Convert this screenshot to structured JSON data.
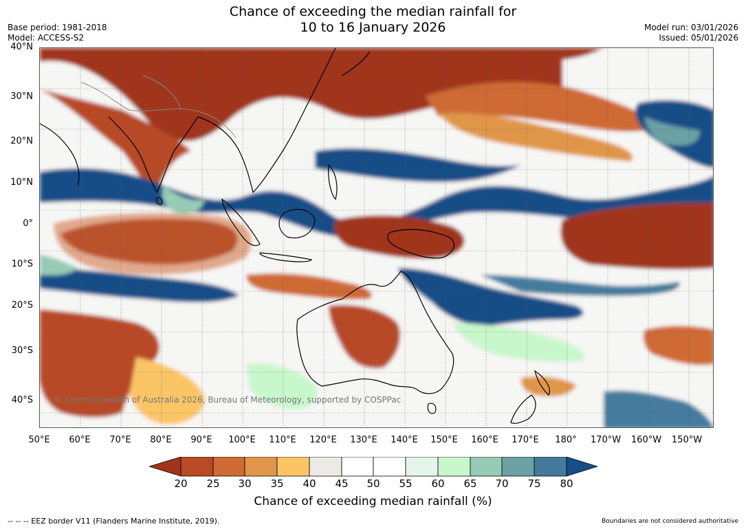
{
  "header": {
    "title_line1": "Chance of exceeding the median rainfall for",
    "title_line2": "10 to 16 January 2026",
    "base_period": "Base period: 1981-2018",
    "model": "Model: ACCESS-S2",
    "model_run": "Model run: 03/01/2026",
    "issued": "Issued: 05/01/2026"
  },
  "map": {
    "latitudes": [
      "40°N",
      "30°N",
      "20°N",
      "10°N",
      "0°",
      "10°S",
      "20°S",
      "30°S",
      "40°S"
    ],
    "longitudes": [
      "50°E",
      "60°E",
      "70°E",
      "80°E",
      "90°E",
      "100°E",
      "110°E",
      "120°E",
      "130°E",
      "140°E",
      "150°E",
      "160°E",
      "170°E",
      "180°",
      "170°W",
      "160°W",
      "150°W"
    ],
    "copyright": "© Commonwealth of Australia 2026, Bureau of Meteorology, supported by COSPPac",
    "colors": {
      "c20": "#a0351b",
      "c25": "#b84a25",
      "c30": "#cf6a34",
      "c35": "#e0964a",
      "c40": "#fbc566",
      "c45": "#eceae4",
      "c50": "#ffffff",
      "c55": "#ffffff",
      "c60": "#e6f5e9",
      "c65": "#c9f7cc",
      "c70": "#96ccb5",
      "c75": "#6ba1a5",
      "c80": "#447b9d",
      "c85": "#174e87"
    }
  },
  "colorbar": {
    "ticks": [
      "20",
      "25",
      "30",
      "35",
      "40",
      "45",
      "50",
      "55",
      "60",
      "65",
      "70",
      "75",
      "80"
    ],
    "label": "Chance of exceeding median rainfall (%)"
  },
  "footer": {
    "eez": "--  --  -- EEZ border V11 (Flanders Marine Institute, 2019).",
    "boundaries": "Boundaries are not considered authoritative"
  }
}
